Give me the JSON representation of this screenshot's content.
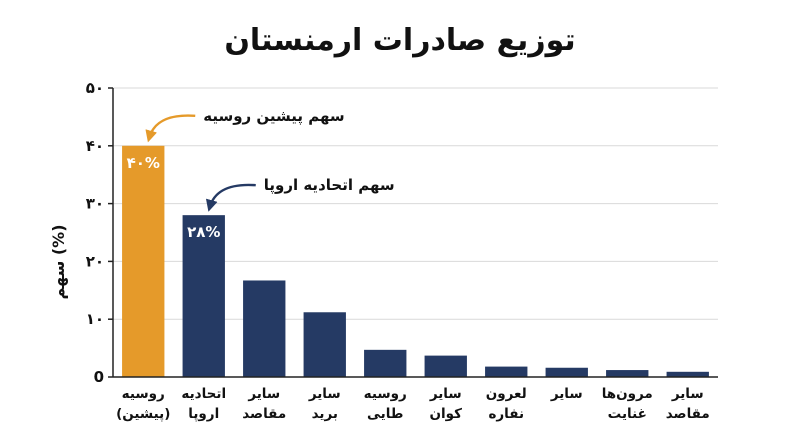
{
  "chart_data": {
    "type": "bar",
    "title": "توزیع صادرات ارمنستان",
    "ylabel": "سهم (%)",
    "ylim": [
      0,
      50
    ],
    "yticks": [
      0,
      10,
      20,
      30,
      40,
      50
    ],
    "ytick_labels": [
      "0",
      "۱۰",
      "۲۰",
      "۳۰",
      "۴۰",
      "۵۰"
    ],
    "grid": true,
    "categories": [
      [
        "روسیه",
        "(پیشین)"
      ],
      [
        "اتحادیه",
        "اروپا"
      ],
      [
        "سایر",
        "مقاصد"
      ],
      [
        "سایر",
        "برید"
      ],
      [
        "روسیه",
        "طایی"
      ],
      [
        "سایر",
        "کوان"
      ],
      [
        "لعرون",
        "نفاره"
      ],
      [
        "سایر"
      ],
      [
        "مرون‌ها",
        "غنایت"
      ],
      [
        "سایر",
        "مقاصد"
      ]
    ],
    "values": [
      40,
      28,
      16.7,
      11.2,
      4.7,
      3.7,
      1.8,
      1.6,
      1.2,
      0.9
    ],
    "data_labels": [
      "۴۰%",
      "۲۸%",
      "",
      "",
      "",
      "",
      "",
      "",
      "",
      ""
    ],
    "colors": [
      "#e59a2a",
      "#253a64",
      "#253a64",
      "#253a64",
      "#253a64",
      "#253a64",
      "#253a64",
      "#253a64",
      "#253a64",
      "#253a64"
    ],
    "annotations": [
      {
        "text": "سهم پیشین روسیه",
        "target_index": 0,
        "color": "#e59a2a"
      },
      {
        "text": "سهم اتحادیه اروپا",
        "target_index": 1,
        "color": "#253a64"
      }
    ]
  }
}
